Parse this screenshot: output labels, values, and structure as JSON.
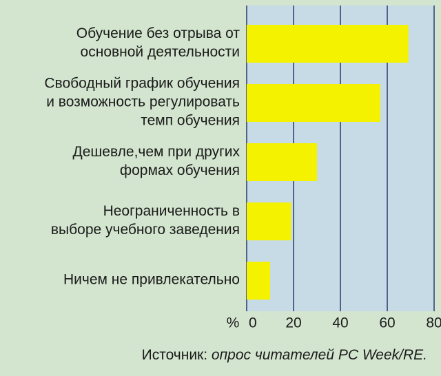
{
  "chart_data": {
    "type": "bar",
    "orientation": "horizontal",
    "categories": [
      [
        "Обучение без отрыва от",
        "основной деятельности"
      ],
      [
        "Свободный график обучения",
        "и возможность регулировать",
        "темп обучения"
      ],
      [
        "Дешевле,чем при других",
        "формах обучения"
      ],
      [
        "Неограниченность в",
        "выборе учебного заведения"
      ],
      [
        "Ничем не привлекательно"
      ]
    ],
    "values": [
      69,
      57,
      30,
      19,
      10
    ],
    "color": "#f5f200",
    "plot_background": "#c6dbe6",
    "xlim": [
      0,
      80
    ],
    "xticks": [
      0,
      20,
      40,
      60,
      80
    ],
    "grid": true,
    "x_unit_label": "%",
    "source": {
      "label": "Источник:",
      "text": "опрос читателей PC Week/RE."
    }
  }
}
